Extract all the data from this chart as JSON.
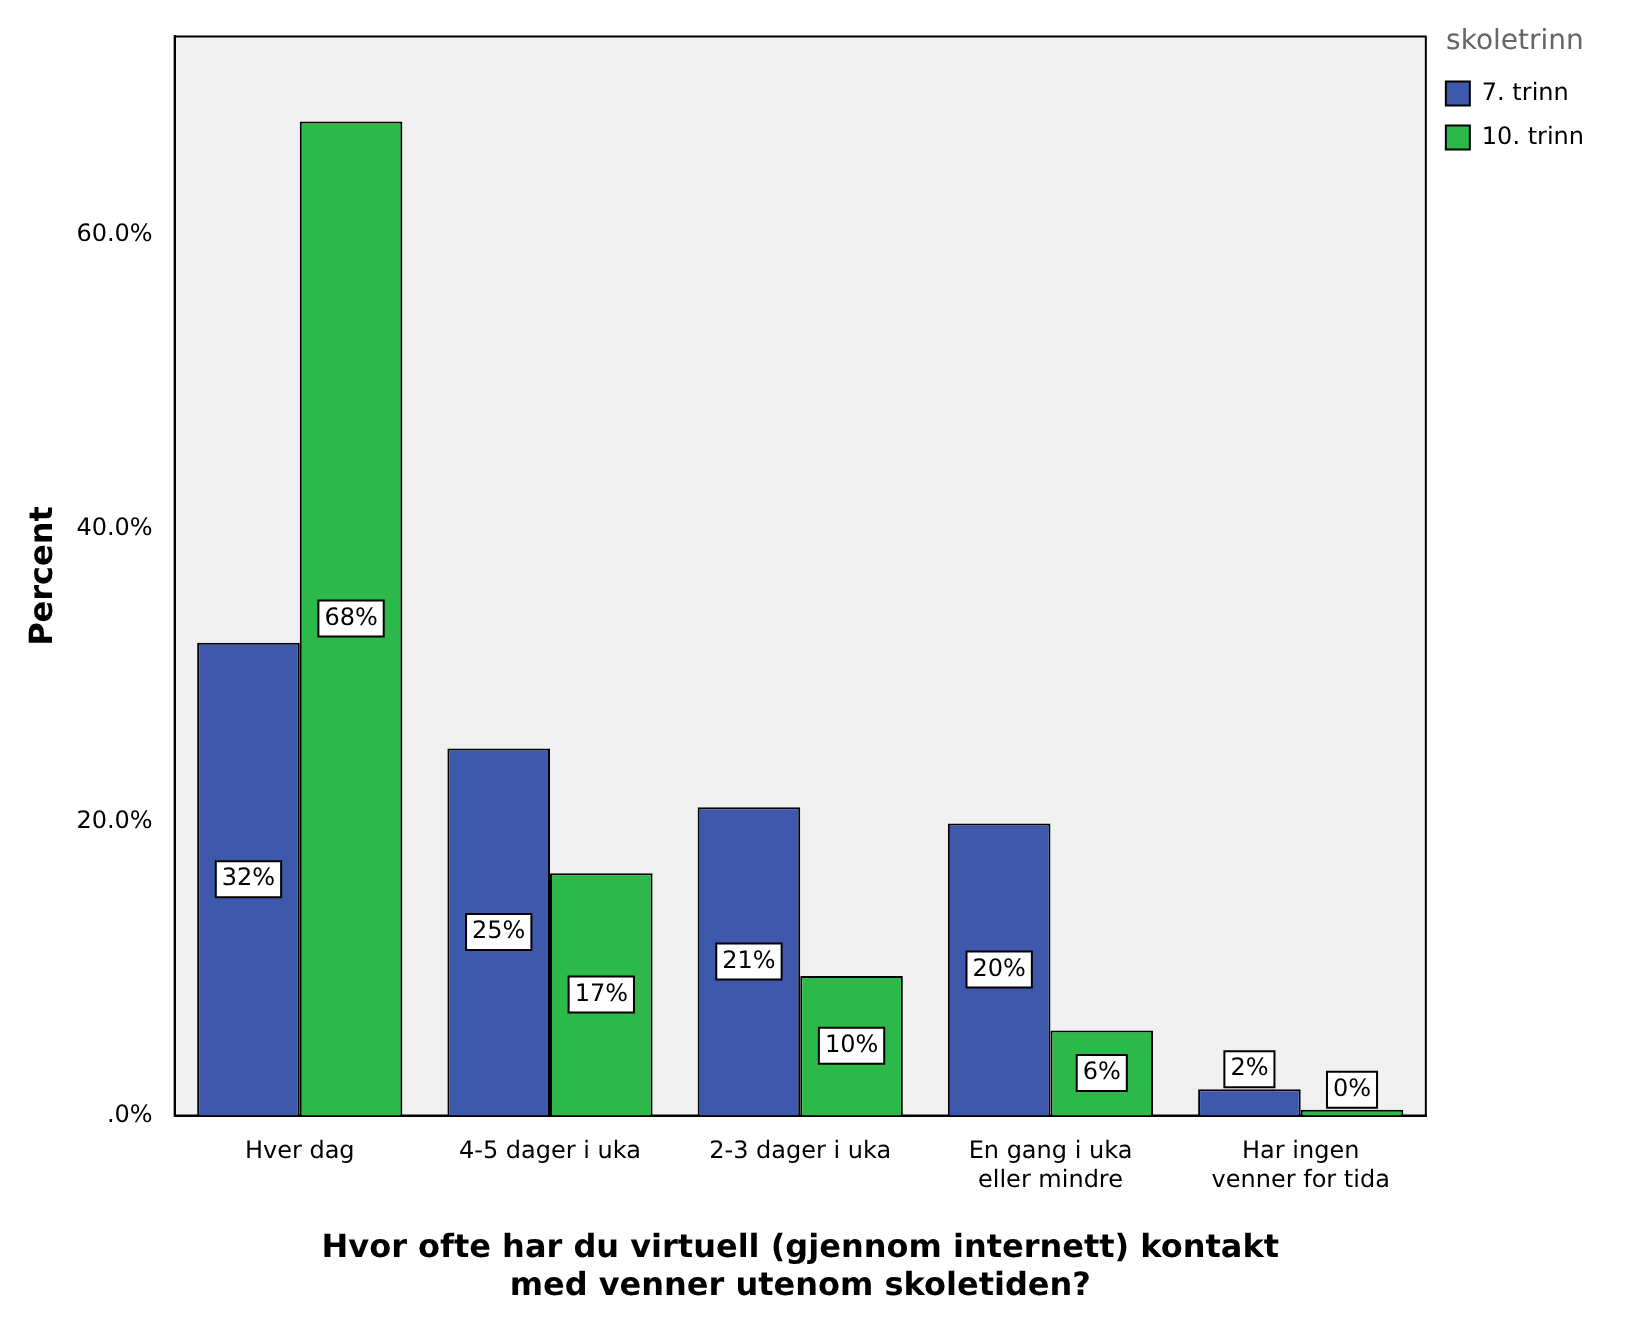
{
  "chart_data": {
    "type": "bar",
    "xlabel": "Hvor ofte har du virtuell (gjennom internett) kontakt\nmed venner utenom skoletiden?",
    "ylabel": "Percent",
    "legend_title": "skoletrinn",
    "legend": "top right",
    "grid": false,
    "categories": [
      "Hver dag",
      "4-5 dager i uka",
      "2-3 dager i uka",
      "En gang i uka\neller mindre",
      "Har ingen\nvenner for tida"
    ],
    "series": [
      {
        "name": "7. trinn",
        "color": "#3e58ac",
        "values": [
          32.2,
          25.0,
          21.0,
          19.9,
          1.8
        ],
        "value_labels": [
          "32%",
          "25%",
          "21%",
          "20%",
          "2%"
        ]
      },
      {
        "name": "10. trinn",
        "color": "#2db84a",
        "values": [
          67.7,
          16.5,
          9.5,
          5.8,
          0.4
        ],
        "value_labels": [
          "68%",
          "17%",
          "10%",
          "6%",
          "0%"
        ]
      }
    ],
    "ylim": [
      0,
      73.5
    ],
    "yticks": [
      {
        "value": 0,
        "label": ".0%"
      },
      {
        "value": 20,
        "label": "20.0%"
      },
      {
        "value": 40,
        "label": "40.0%"
      },
      {
        "value": 60,
        "label": "60.0%"
      }
    ]
  }
}
